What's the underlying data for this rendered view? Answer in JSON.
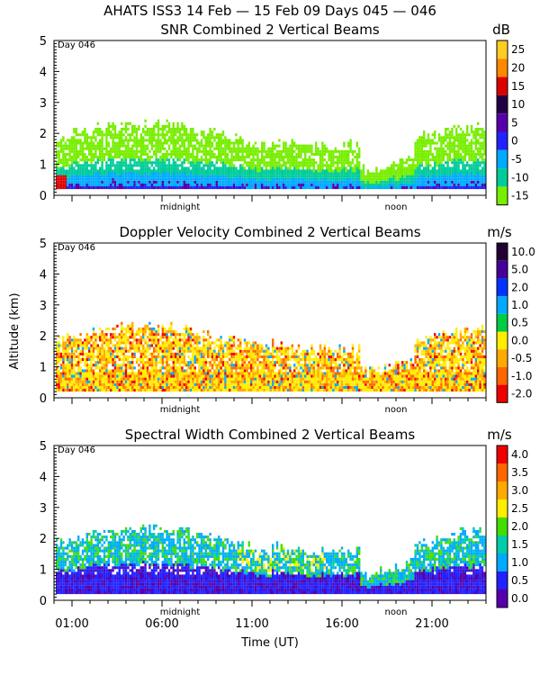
{
  "figure": {
    "header": "AHATS ISS3  14 Feb — 15 Feb 09 Days 045 — 046",
    "ylabel": "Altitude (km)",
    "xlabel": "Time (UT)",
    "x_ticks": [
      "01:00",
      "06:00",
      "11:00",
      "16:00",
      "21:00"
    ],
    "marks": {
      "midnight": "midnight",
      "noon": "noon"
    },
    "day_label": "Day 046"
  },
  "chart_data": [
    {
      "type": "heatmap",
      "title": "SNR Combined 2 Vertical Beams",
      "unit": "dB",
      "ylim": [
        0,
        5
      ],
      "y_ticks": [
        "0",
        "1",
        "2",
        "3",
        "4",
        "5"
      ],
      "xlim_hours_ut": [
        0,
        24
      ],
      "colorbar_labels": [
        "25",
        "20",
        "15",
        "10",
        "5",
        "0",
        "-5",
        "-10",
        "-15"
      ],
      "colorbar_colors": [
        "#ffcc22",
        "#ff8800",
        "#dd0000",
        "#220044",
        "#5500aa",
        "#2222ff",
        "#00aaff",
        "#00cc99",
        "#77ee00"
      ]
    },
    {
      "type": "heatmap",
      "title": "Doppler Velocity Combined 2 Vertical Beams",
      "unit": "m/s",
      "ylim": [
        0,
        5
      ],
      "y_ticks": [
        "0",
        "1",
        "2",
        "3",
        "4",
        "5"
      ],
      "xlim_hours_ut": [
        0,
        24
      ],
      "colorbar_labels": [
        "10.0",
        "5.0",
        "2.0",
        "1.0",
        "0.5",
        "0.0",
        "-0.5",
        "-1.0",
        "-2.0"
      ],
      "colorbar_colors": [
        "#220033",
        "#440099",
        "#0033ff",
        "#00aaff",
        "#00cc44",
        "#ffee00",
        "#ffaa00",
        "#ff6600",
        "#ee0000"
      ]
    },
    {
      "type": "heatmap",
      "title": "Spectral Width Combined 2 Vertical Beams",
      "unit": "m/s",
      "ylim": [
        0,
        5
      ],
      "y_ticks": [
        "0",
        "1",
        "2",
        "3",
        "4",
        "5"
      ],
      "xlim_hours_ut": [
        0,
        24
      ],
      "colorbar_labels": [
        "4.0",
        "3.5",
        "3.0",
        "2.5",
        "2.0",
        "1.5",
        "1.0",
        "0.5",
        "0.0"
      ],
      "colorbar_colors": [
        "#ee0000",
        "#ff6600",
        "#ffaa00",
        "#ffee00",
        "#44dd00",
        "#00ccaa",
        "#00aaff",
        "#2222ff",
        "#5500aa"
      ]
    }
  ]
}
